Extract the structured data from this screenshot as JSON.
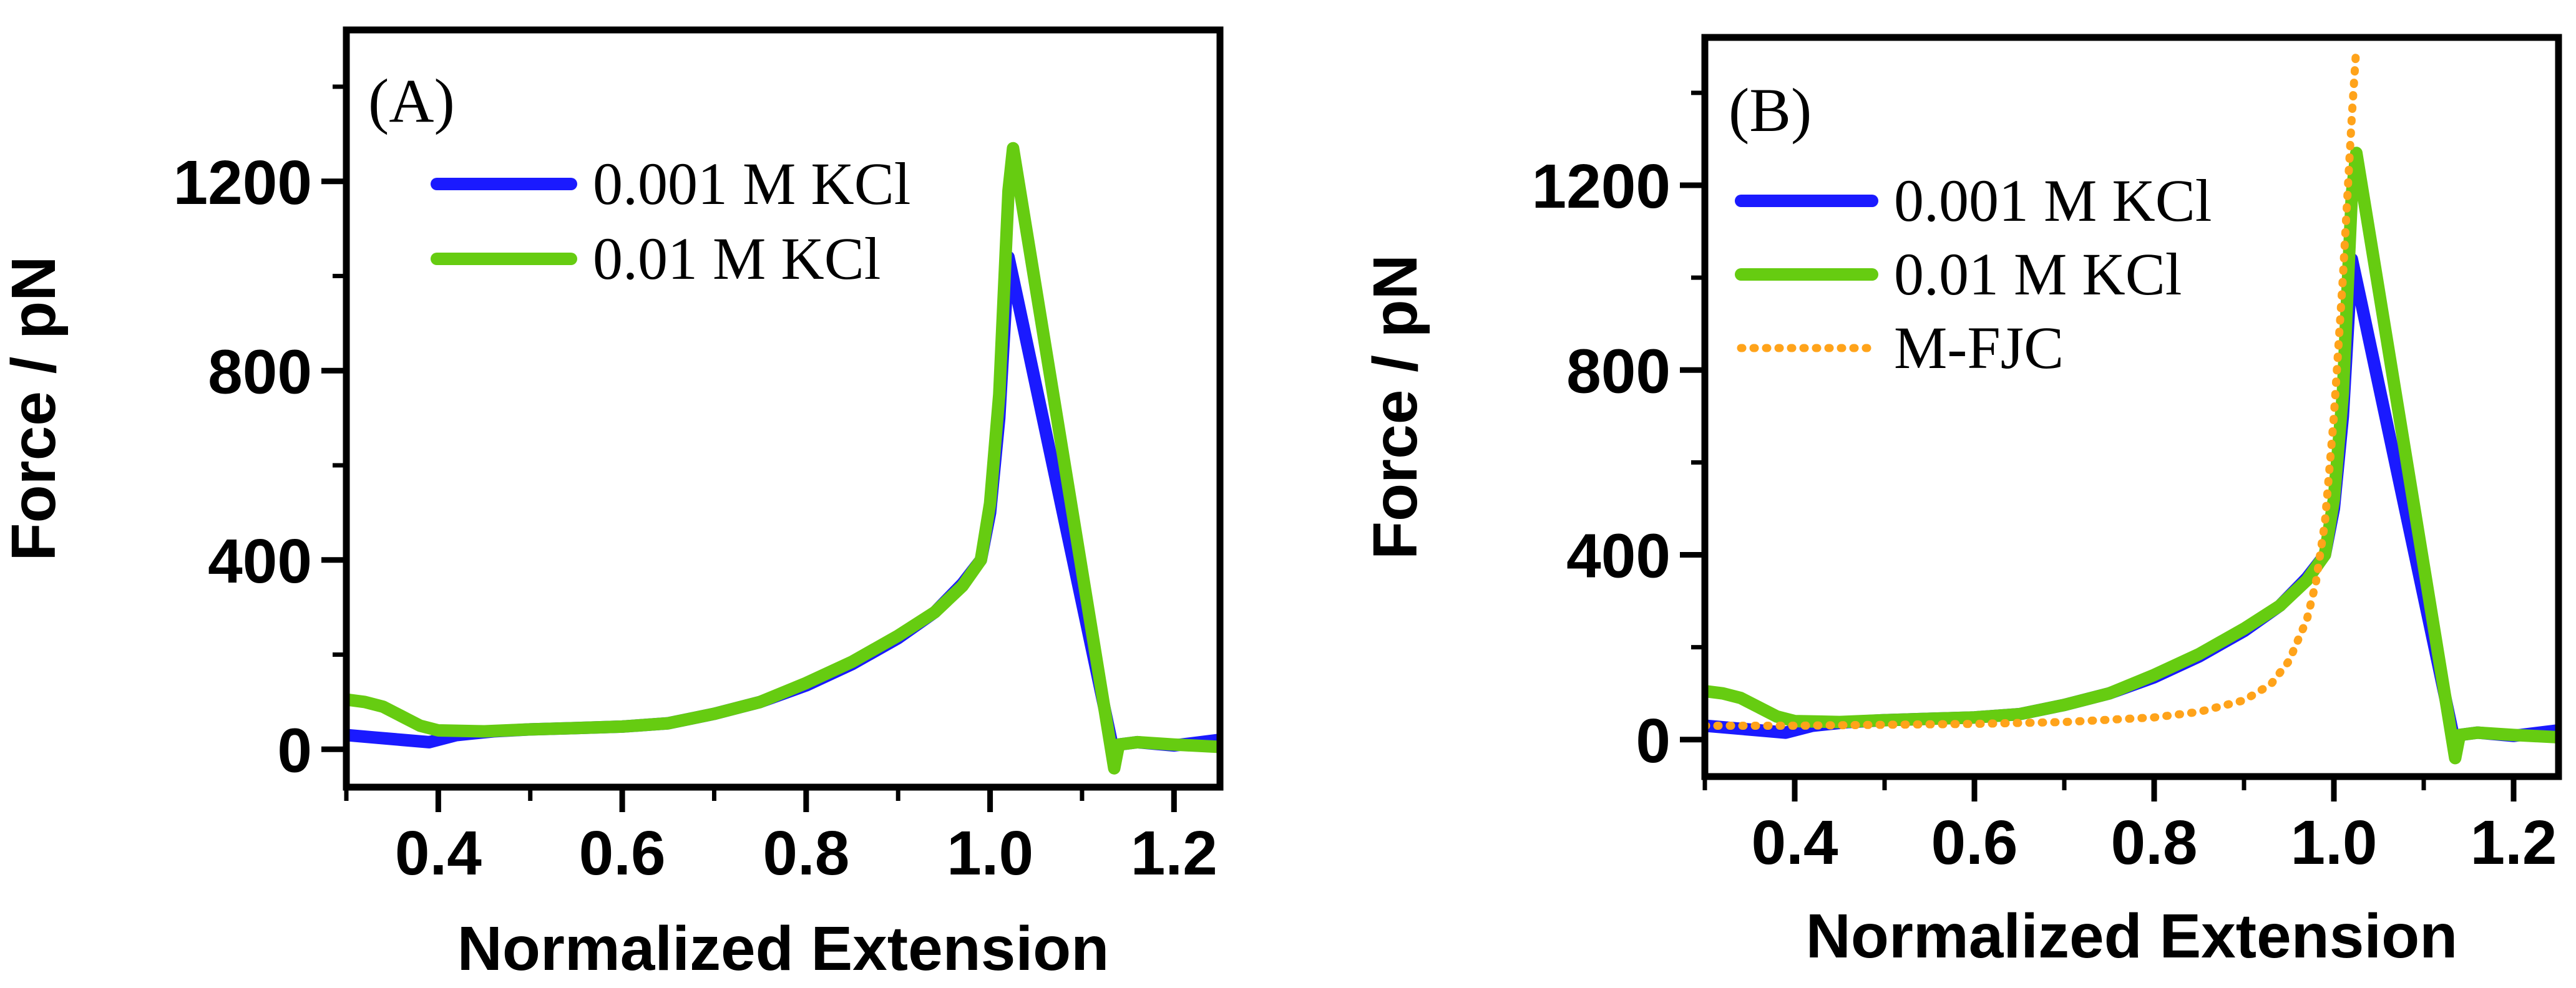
{
  "chart_data": [
    {
      "type": "line",
      "panel_label": "(A)",
      "xlabel": "Normalized Extension",
      "ylabel": "Force / pN",
      "xlim": [
        0.3,
        1.25
      ],
      "ylim": [
        -80,
        1520
      ],
      "x_ticks": [
        0.4,
        0.6,
        0.8,
        1.0,
        1.2
      ],
      "x_tick_labels": [
        "0.4",
        "0.6",
        "0.8",
        "1.0",
        "1.2"
      ],
      "y_ticks": [
        0,
        400,
        800,
        1200
      ],
      "y_tick_labels": [
        "0",
        "400",
        "800",
        "1200"
      ],
      "legend_position": "top-center",
      "series": [
        {
          "name": "0.001 M KCl",
          "color": "#1a1aff",
          "style": "solid",
          "x": [
            0.3,
            0.33,
            0.36,
            0.39,
            0.42,
            0.46,
            0.5,
            0.55,
            0.6,
            0.65,
            0.7,
            0.75,
            0.8,
            0.85,
            0.9,
            0.94,
            0.97,
            0.99,
            1.0,
            1.01,
            1.02,
            1.03,
            1.135,
            1.14,
            1.16,
            1.2,
            1.25
          ],
          "values": [
            30,
            25,
            20,
            15,
            30,
            38,
            42,
            45,
            48,
            55,
            75,
            100,
            135,
            180,
            235,
            290,
            350,
            400,
            500,
            700,
            1040,
            950,
            -10,
            10,
            15,
            8,
            20
          ]
        },
        {
          "name": "0.01 M KCl",
          "color": "#66cc11",
          "style": "solid",
          "x": [
            0.3,
            0.32,
            0.34,
            0.36,
            0.38,
            0.4,
            0.45,
            0.5,
            0.55,
            0.6,
            0.65,
            0.7,
            0.75,
            0.8,
            0.85,
            0.9,
            0.94,
            0.97,
            0.99,
            1.0,
            1.01,
            1.02,
            1.025,
            1.135,
            1.14,
            1.16,
            1.2,
            1.25
          ],
          "values": [
            105,
            100,
            90,
            70,
            50,
            40,
            38,
            42,
            45,
            48,
            55,
            75,
            100,
            140,
            185,
            240,
            290,
            345,
            400,
            520,
            750,
            1180,
            1270,
            -40,
            10,
            15,
            10,
            5
          ]
        }
      ]
    },
    {
      "type": "line",
      "panel_label": "(B)",
      "xlabel": "Normalized Extension",
      "ylabel": "Force / pN",
      "xlim": [
        0.3,
        1.25
      ],
      "ylim": [
        -80,
        1520
      ],
      "x_ticks": [
        0.4,
        0.6,
        0.8,
        1.0,
        1.2
      ],
      "x_tick_labels": [
        "0.4",
        "0.6",
        "0.8",
        "1.0",
        "1.2"
      ],
      "y_ticks": [
        0,
        400,
        800,
        1200
      ],
      "y_tick_labels": [
        "0",
        "400",
        "800",
        "1200"
      ],
      "legend_position": "top-left",
      "series": [
        {
          "name": "0.001 M KCl",
          "color": "#1a1aff",
          "style": "solid",
          "x": [
            0.3,
            0.33,
            0.36,
            0.39,
            0.42,
            0.46,
            0.5,
            0.55,
            0.6,
            0.65,
            0.7,
            0.75,
            0.8,
            0.85,
            0.9,
            0.94,
            0.97,
            0.99,
            1.0,
            1.01,
            1.02,
            1.03,
            1.135,
            1.14,
            1.16,
            1.2,
            1.25
          ],
          "values": [
            30,
            25,
            20,
            15,
            30,
            38,
            42,
            45,
            48,
            55,
            75,
            100,
            135,
            180,
            235,
            290,
            350,
            400,
            500,
            700,
            1040,
            950,
            -10,
            10,
            15,
            8,
            20
          ]
        },
        {
          "name": "0.01 M KCl",
          "color": "#66cc11",
          "style": "solid",
          "x": [
            0.3,
            0.32,
            0.34,
            0.36,
            0.38,
            0.4,
            0.45,
            0.5,
            0.55,
            0.6,
            0.65,
            0.7,
            0.75,
            0.8,
            0.85,
            0.9,
            0.94,
            0.97,
            0.99,
            1.0,
            1.01,
            1.02,
            1.025,
            1.135,
            1.14,
            1.16,
            1.2,
            1.25
          ],
          "values": [
            105,
            100,
            90,
            70,
            50,
            40,
            38,
            42,
            45,
            48,
            55,
            75,
            100,
            140,
            185,
            240,
            290,
            345,
            400,
            520,
            750,
            1180,
            1270,
            -40,
            10,
            15,
            10,
            5
          ]
        },
        {
          "name": "M-FJC",
          "color": "#ffa31a",
          "style": "dotted",
          "x": [
            0.3,
            0.4,
            0.5,
            0.6,
            0.7,
            0.8,
            0.85,
            0.9,
            0.93,
            0.95,
            0.97,
            0.98,
            0.99,
            1.0,
            1.01,
            1.02,
            1.025
          ],
          "values": [
            30,
            30,
            32,
            34,
            38,
            48,
            60,
            85,
            120,
            170,
            260,
            340,
            470,
            700,
            1000,
            1350,
            1500
          ]
        }
      ]
    }
  ]
}
